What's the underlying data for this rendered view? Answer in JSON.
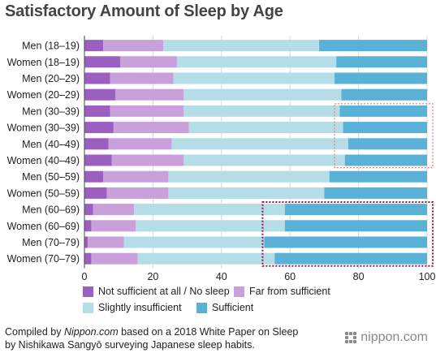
{
  "title": "Satisfactory Amount of Sleep by Age",
  "chart_data": {
    "type": "bar",
    "orientation": "horizontal",
    "stacked": true,
    "categories": [
      "Men (18–19)",
      "Women (18–19)",
      "Men (20–29)",
      "Women (20–29)",
      "Men (30–39)",
      "Women (30–39)",
      "Men (40–49)",
      "Women (40–49)",
      "Men (50–59)",
      "Women (50–59)",
      "Men (60–69)",
      "Women (60–69)",
      "Men (70–79)",
      "Women (70–79)"
    ],
    "series": [
      {
        "name": "Not sufficient at all / No sleep",
        "color": "#9b5fc0",
        "values": [
          5.5,
          10.5,
          7.5,
          9.0,
          7.5,
          8.5,
          7.0,
          8.0,
          5.5,
          6.5,
          2.5,
          2.0,
          1.0,
          2.0
        ]
      },
      {
        "name": "Far from sufficient",
        "color": "#c9a0dc",
        "values": [
          17.5,
          16.5,
          18.5,
          20.0,
          21.5,
          22.0,
          18.5,
          21.0,
          19.0,
          18.0,
          12.0,
          13.0,
          10.5,
          13.5
        ]
      },
      {
        "name": "Slightly insufficient",
        "color": "#b5dde7",
        "values": [
          45.5,
          46.5,
          47.0,
          46.0,
          45.5,
          45.0,
          51.5,
          47.0,
          47.0,
          45.5,
          44.0,
          43.5,
          41.0,
          40.0
        ]
      },
      {
        "name": "Sufficient",
        "color": "#5ab1d8",
        "values": [
          31.5,
          26.5,
          27.0,
          25.0,
          25.5,
          24.5,
          23.0,
          24.0,
          28.5,
          30.0,
          41.5,
          41.5,
          47.5,
          44.5
        ]
      }
    ],
    "x_ticks": [
      "0",
      "20",
      "40",
      "60",
      "80",
      "100"
    ],
    "xlim": [
      0,
      100
    ],
    "unit_label": "(%)",
    "grid": true,
    "legend_position": "bottom",
    "highlight_boxes": [
      {
        "color": "#e8797e",
        "style": "dotted",
        "categories": [
          "Men (30–39)",
          "Women (40–49)"
        ],
        "x_range": [
          73,
          100
        ]
      },
      {
        "color": "#8b1a4a",
        "style": "dotted",
        "categories": [
          "Men (60–69)",
          "Women (70–79)"
        ],
        "x_range": [
          52,
          100
        ]
      }
    ]
  },
  "source": {
    "line1_prefix": "Compiled by ",
    "line1_site": "Nippon.com",
    "line1_suffix": " based on a 2018 White Paper on Sleep",
    "line2": "by Nishikawa Sangyō surveying Japanese sleep habits."
  },
  "logo": {
    "text": "nippon.com"
  }
}
